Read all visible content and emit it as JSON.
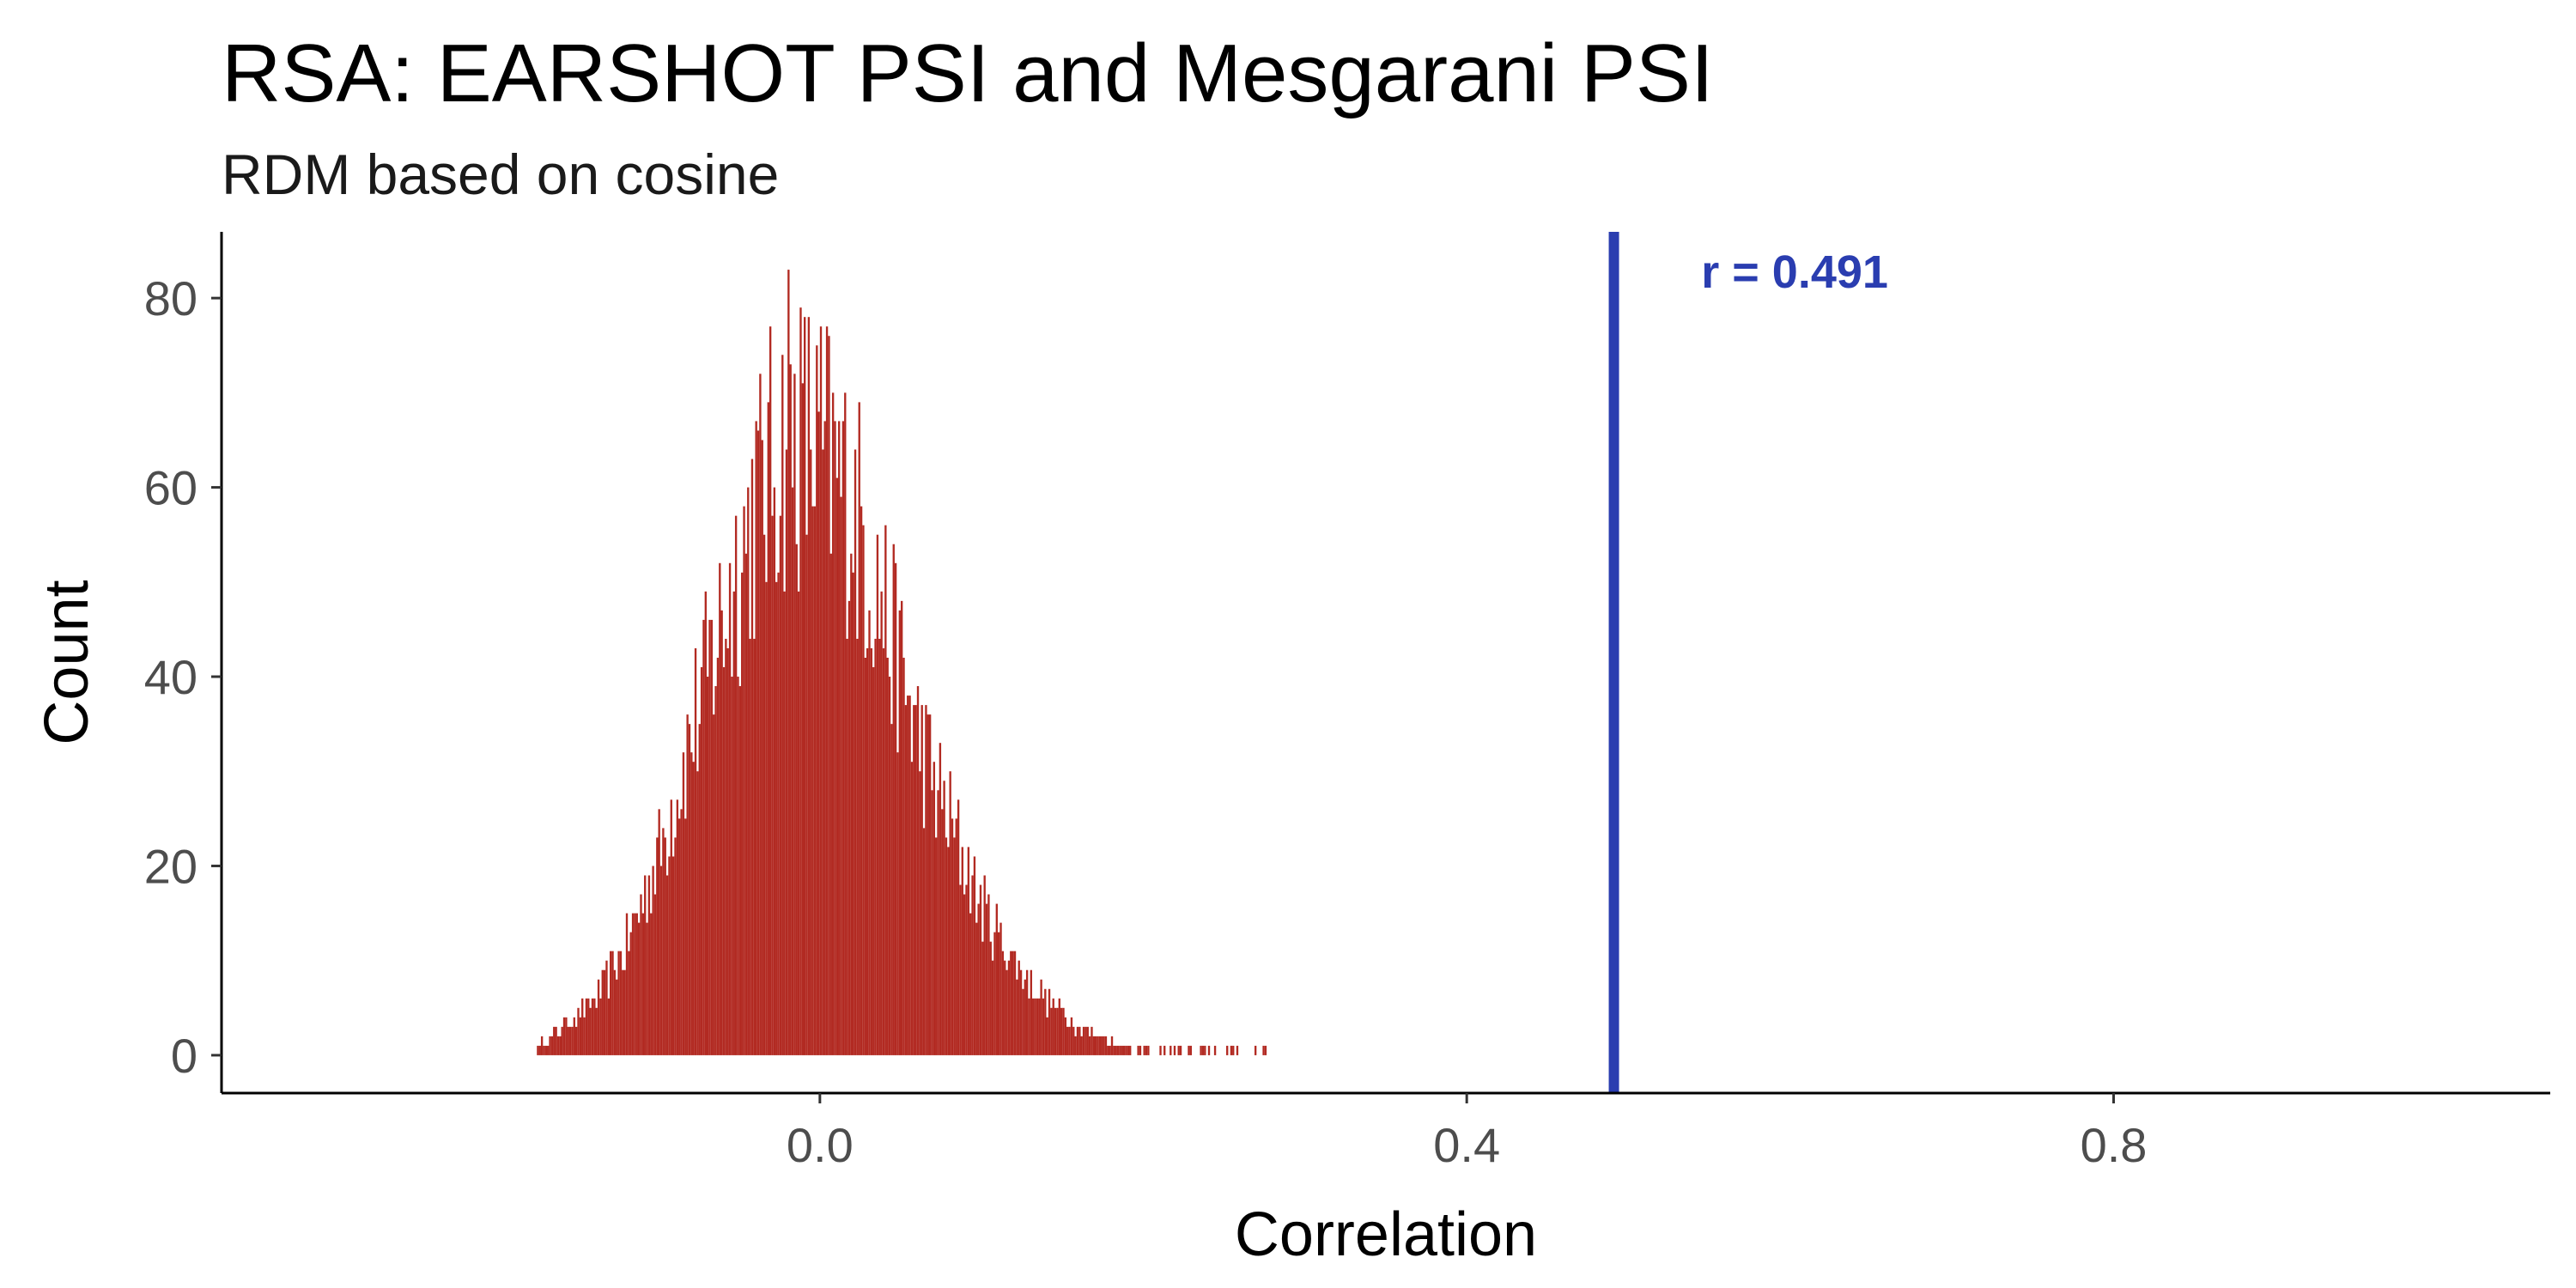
{
  "chart_data": {
    "type": "bar",
    "title": "RSA: EARSHOT PSI and Mesgarani PSI",
    "subtitle": "RDM based on cosine",
    "xlabel": "Correlation",
    "ylabel": "Count",
    "xlim": [
      -0.37,
      1.07
    ],
    "ylim": [
      -4,
      87
    ],
    "x_ticks": [
      0.0,
      0.4,
      0.8
    ],
    "x_tick_labels": [
      "0.0",
      "0.4",
      "0.8"
    ],
    "y_ticks": [
      0,
      20,
      40,
      60,
      80
    ],
    "y_tick_labels": [
      "0",
      "20",
      "40",
      "60",
      "80"
    ],
    "grid": false,
    "legend": "none",
    "histogram": {
      "color": "#b22a22",
      "bin_width": 0.00125,
      "peak_x": -0.02,
      "peak_count": 83,
      "range": [
        -0.175,
        0.275
      ],
      "profile": [
        {
          "x": -0.175,
          "y": 1
        },
        {
          "x": -0.16,
          "y": 3
        },
        {
          "x": -0.14,
          "y": 6
        },
        {
          "x": -0.12,
          "y": 12
        },
        {
          "x": -0.1,
          "y": 22
        },
        {
          "x": -0.08,
          "y": 35
        },
        {
          "x": -0.06,
          "y": 48
        },
        {
          "x": -0.04,
          "y": 60
        },
        {
          "x": -0.02,
          "y": 68
        },
        {
          "x": 0.0,
          "y": 66
        },
        {
          "x": 0.02,
          "y": 60
        },
        {
          "x": 0.04,
          "y": 48
        },
        {
          "x": 0.06,
          "y": 35
        },
        {
          "x": 0.08,
          "y": 25
        },
        {
          "x": 0.1,
          "y": 16
        },
        {
          "x": 0.12,
          "y": 10
        },
        {
          "x": 0.14,
          "y": 6
        },
        {
          "x": 0.16,
          "y": 3
        },
        {
          "x": 0.18,
          "y": 1.5
        },
        {
          "x": 0.22,
          "y": 1
        },
        {
          "x": 0.275,
          "y": 1
        }
      ]
    },
    "observed": {
      "x": 0.491,
      "label": "r = 0.491",
      "color": "#2a3db0"
    }
  }
}
